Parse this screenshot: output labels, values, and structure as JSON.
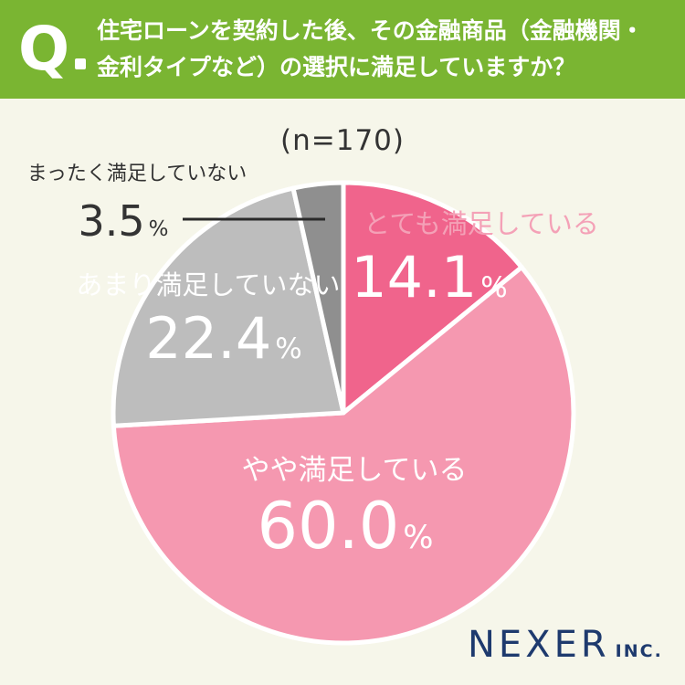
{
  "question": {
    "mark": "Q",
    "line1": "住宅ローンを契約した後、その金融商品（金融機関・",
    "line2": "金利タイプなど）の選択に満足していますか？"
  },
  "sample_size": "(n=170)",
  "brand": {
    "name": "NEXER",
    "suffix": "INC."
  },
  "colors": {
    "header": "#7ab532",
    "background": "#f6f6ea",
    "very_satisfied": "#f0648c",
    "somewhat_satisfied": "#f598b0",
    "not_very_satisfied": "#bdbdbd",
    "not_at_all_satisfied": "#8f8f8f"
  },
  "chart_data": {
    "type": "pie",
    "unit": "%",
    "start": "12 o'clock, clockwise",
    "slices": [
      {
        "label": "とても満足している",
        "value": 14.1,
        "value_text": "14.1",
        "color": "#f0648c",
        "label_color": "#f4a1b7",
        "value_color": "#ffffff"
      },
      {
        "label": "やや満足している",
        "value": 60.0,
        "value_text": "60.0",
        "color": "#f598b0",
        "label_color": "#ffffff",
        "value_color": "#ffffff"
      },
      {
        "label": "あまり満足していない",
        "value": 22.4,
        "value_text": "22.4",
        "color": "#bdbdbd",
        "label_color": "#ffffff",
        "value_color": "#ffffff"
      },
      {
        "label": "まったく満足していない",
        "value": 3.5,
        "value_text": "3.5",
        "color": "#8f8f8f",
        "label_color": "#333333",
        "value_color": "#333333",
        "label_outside": true
      }
    ]
  }
}
